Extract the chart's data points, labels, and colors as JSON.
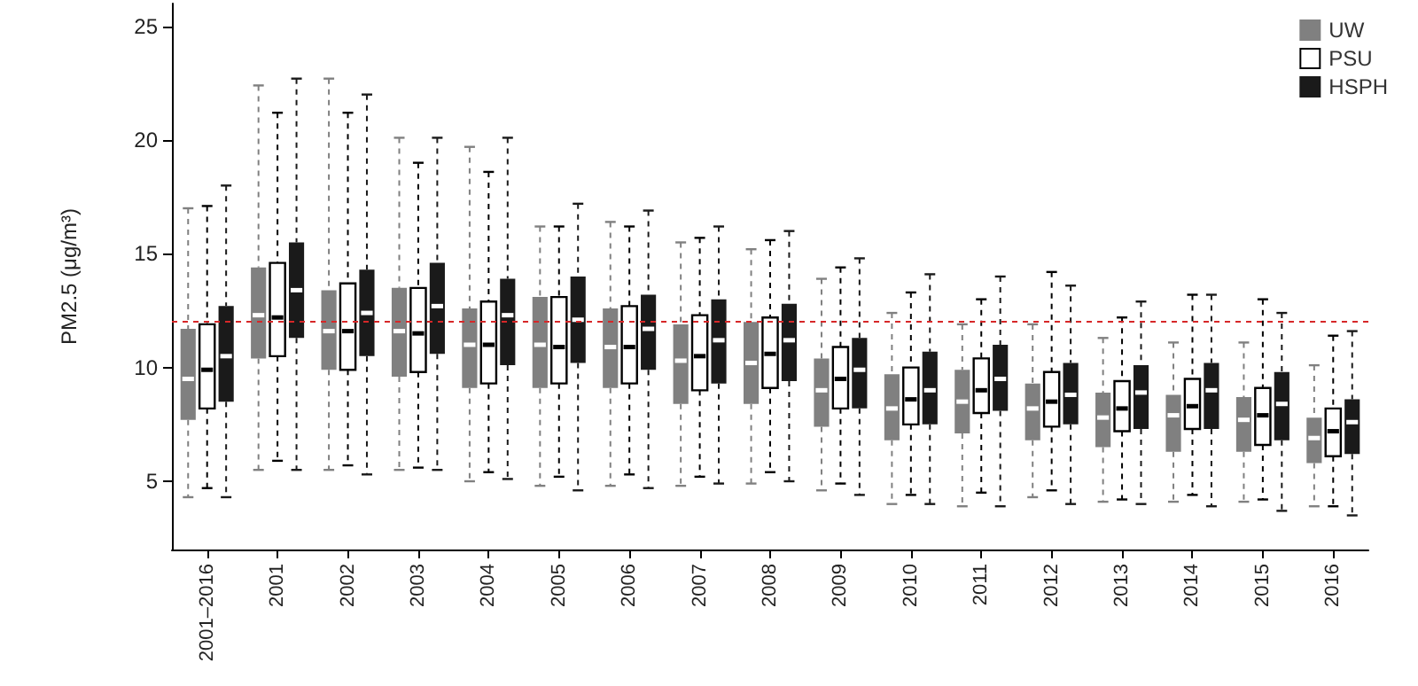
{
  "chart_data": {
    "type": "box",
    "ylabel": "PM2.5 (μg/m³)",
    "categories": [
      "2001–2016",
      "2001",
      "2002",
      "2003",
      "2004",
      "2005",
      "2006",
      "2007",
      "2008",
      "2009",
      "2010",
      "2011",
      "2012",
      "2013",
      "2014",
      "2015",
      "2016"
    ],
    "ylim": [
      2,
      26
    ],
    "yticks": [
      5,
      10,
      15,
      20,
      25
    ],
    "grid": false,
    "legend": "top right",
    "line_style": "dashed",
    "ref_lines": [
      {
        "axis": "y",
        "value": 12,
        "color": "#d62728",
        "line_style": "dashed"
      }
    ],
    "series": [
      {
        "name": "UW",
        "color": "#808080",
        "boxes": [
          {
            "low": 4.3,
            "q1": 7.7,
            "median": 9.5,
            "q3": 11.7,
            "high": 17.0
          },
          {
            "low": 5.5,
            "q1": 10.4,
            "median": 12.3,
            "q3": 14.4,
            "high": 22.4
          },
          {
            "low": 5.5,
            "q1": 9.9,
            "median": 11.6,
            "q3": 13.4,
            "high": 22.7
          },
          {
            "low": 5.5,
            "q1": 9.6,
            "median": 11.6,
            "q3": 13.5,
            "high": 20.1
          },
          {
            "low": 5.0,
            "q1": 9.1,
            "median": 11.0,
            "q3": 12.6,
            "high": 19.7
          },
          {
            "low": 4.8,
            "q1": 9.1,
            "median": 11.0,
            "q3": 13.1,
            "high": 16.2
          },
          {
            "low": 4.8,
            "q1": 9.1,
            "median": 10.9,
            "q3": 12.6,
            "high": 16.4
          },
          {
            "low": 4.8,
            "q1": 8.4,
            "median": 10.3,
            "q3": 11.9,
            "high": 15.5
          },
          {
            "low": 4.9,
            "q1": 8.4,
            "median": 10.2,
            "q3": 12.0,
            "high": 15.2
          },
          {
            "low": 4.6,
            "q1": 7.4,
            "median": 9.0,
            "q3": 10.4,
            "high": 13.9
          },
          {
            "low": 4.0,
            "q1": 6.8,
            "median": 8.2,
            "q3": 9.7,
            "high": 12.4
          },
          {
            "low": 3.9,
            "q1": 7.1,
            "median": 8.5,
            "q3": 9.9,
            "high": 11.9
          },
          {
            "low": 4.3,
            "q1": 6.8,
            "median": 8.2,
            "q3": 9.3,
            "high": 11.9
          },
          {
            "low": 4.1,
            "q1": 6.5,
            "median": 7.8,
            "q3": 8.9,
            "high": 11.3
          },
          {
            "low": 4.1,
            "q1": 6.3,
            "median": 7.9,
            "q3": 8.8,
            "high": 11.1
          },
          {
            "low": 4.1,
            "q1": 6.3,
            "median": 7.7,
            "q3": 8.7,
            "high": 11.1
          },
          {
            "low": 3.9,
            "q1": 5.8,
            "median": 6.9,
            "q3": 7.8,
            "high": 10.1
          }
        ]
      },
      {
        "name": "PSU",
        "color": "#ffffff",
        "boxes": [
          {
            "low": 4.7,
            "q1": 8.2,
            "median": 9.9,
            "q3": 11.9,
            "high": 17.1
          },
          {
            "low": 5.9,
            "q1": 10.5,
            "median": 12.2,
            "q3": 14.6,
            "high": 21.2
          },
          {
            "low": 5.7,
            "q1": 9.9,
            "median": 11.6,
            "q3": 13.7,
            "high": 21.2
          },
          {
            "low": 5.6,
            "q1": 9.8,
            "median": 11.5,
            "q3": 13.5,
            "high": 19.0
          },
          {
            "low": 5.4,
            "q1": 9.3,
            "median": 11.0,
            "q3": 12.9,
            "high": 18.6
          },
          {
            "low": 5.2,
            "q1": 9.3,
            "median": 10.9,
            "q3": 13.1,
            "high": 16.2
          },
          {
            "low": 5.3,
            "q1": 9.3,
            "median": 10.9,
            "q3": 12.7,
            "high": 16.2
          },
          {
            "low": 5.2,
            "q1": 9.0,
            "median": 10.5,
            "q3": 12.3,
            "high": 15.7
          },
          {
            "low": 5.4,
            "q1": 9.1,
            "median": 10.6,
            "q3": 12.2,
            "high": 15.6
          },
          {
            "low": 4.9,
            "q1": 8.2,
            "median": 9.5,
            "q3": 10.9,
            "high": 14.4
          },
          {
            "low": 4.4,
            "q1": 7.5,
            "median": 8.6,
            "q3": 10.0,
            "high": 13.3
          },
          {
            "low": 4.5,
            "q1": 8.0,
            "median": 9.0,
            "q3": 10.4,
            "high": 13.0
          },
          {
            "low": 4.6,
            "q1": 7.4,
            "median": 8.5,
            "q3": 9.8,
            "high": 14.2
          },
          {
            "low": 4.2,
            "q1": 7.2,
            "median": 8.2,
            "q3": 9.4,
            "high": 12.2
          },
          {
            "low": 4.4,
            "q1": 7.3,
            "median": 8.3,
            "q3": 9.5,
            "high": 13.2
          },
          {
            "low": 4.2,
            "q1": 6.6,
            "median": 7.9,
            "q3": 9.1,
            "high": 13.0
          },
          {
            "low": 3.9,
            "q1": 6.1,
            "median": 7.2,
            "q3": 8.2,
            "high": 11.4
          }
        ]
      },
      {
        "name": "HSPH",
        "color": "#1a1a1a",
        "boxes": [
          {
            "low": 4.3,
            "q1": 8.5,
            "median": 10.5,
            "q3": 12.7,
            "high": 18.0
          },
          {
            "low": 5.5,
            "q1": 11.3,
            "median": 13.4,
            "q3": 15.5,
            "high": 22.7
          },
          {
            "low": 5.3,
            "q1": 10.5,
            "median": 12.4,
            "q3": 14.3,
            "high": 22.0
          },
          {
            "low": 5.5,
            "q1": 10.6,
            "median": 12.7,
            "q3": 14.6,
            "high": 20.1
          },
          {
            "low": 5.1,
            "q1": 10.1,
            "median": 12.3,
            "q3": 13.9,
            "high": 20.1
          },
          {
            "low": 4.6,
            "q1": 10.2,
            "median": 12.1,
            "q3": 14.0,
            "high": 17.2
          },
          {
            "low": 4.7,
            "q1": 9.9,
            "median": 11.7,
            "q3": 13.2,
            "high": 16.9
          },
          {
            "low": 4.9,
            "q1": 9.3,
            "median": 11.2,
            "q3": 13.0,
            "high": 16.2
          },
          {
            "low": 5.0,
            "q1": 9.4,
            "median": 11.2,
            "q3": 12.8,
            "high": 16.0
          },
          {
            "low": 4.4,
            "q1": 8.2,
            "median": 9.9,
            "q3": 11.3,
            "high": 14.8
          },
          {
            "low": 4.0,
            "q1": 7.5,
            "median": 9.0,
            "q3": 10.7,
            "high": 14.1
          },
          {
            "low": 3.9,
            "q1": 8.1,
            "median": 9.5,
            "q3": 11.0,
            "high": 14.0
          },
          {
            "low": 4.0,
            "q1": 7.5,
            "median": 8.8,
            "q3": 10.2,
            "high": 13.6
          },
          {
            "low": 4.0,
            "q1": 7.3,
            "median": 8.9,
            "q3": 10.1,
            "high": 12.9
          },
          {
            "low": 3.9,
            "q1": 7.3,
            "median": 9.0,
            "q3": 10.2,
            "high": 13.2
          },
          {
            "low": 3.7,
            "q1": 6.8,
            "median": 8.4,
            "q3": 9.8,
            "high": 12.4
          },
          {
            "low": 3.5,
            "q1": 6.2,
            "median": 7.6,
            "q3": 8.6,
            "high": 11.6
          }
        ]
      }
    ]
  }
}
